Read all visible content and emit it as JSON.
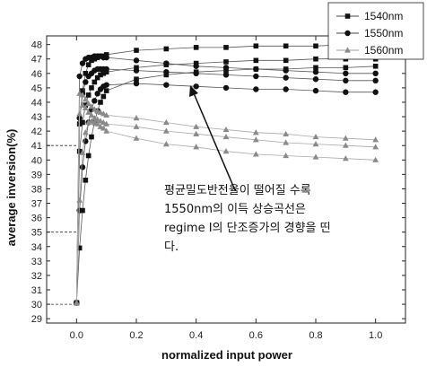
{
  "chart_data": {
    "type": "line",
    "xlabel": "normalized input power",
    "ylabel": "average inversion(%)",
    "xlim": [
      -0.1,
      1.1
    ],
    "ylim": [
      28.7,
      48.6
    ],
    "x_ticks": [
      "0.0",
      "0.2",
      "0.4",
      "0.6",
      "0.8",
      "1.0"
    ],
    "y_ticks": [
      "29",
      "30",
      "31",
      "32",
      "33",
      "34",
      "35",
      "36",
      "37",
      "38",
      "39",
      "40",
      "41",
      "42",
      "43",
      "44",
      "45",
      "46",
      "47",
      "48"
    ],
    "grid": false,
    "legend_position": "top-right",
    "series": [
      {
        "name": "1540nm",
        "marker": "square",
        "color": "#111111",
        "lines": [
          {
            "x": [
              0,
              0.01,
              0.02,
              0.03,
              0.04,
              0.05,
              0.06,
              0.07,
              0.08,
              0.09,
              0.1,
              0.2,
              0.3,
              0.4,
              0.5,
              0.6,
              0.7,
              0.8,
              0.9,
              1.0
            ],
            "y": [
              30.1,
              42.5,
              44.8,
              46.0,
              46.6,
              46.9,
              47.0,
              47.1,
              47.2,
              47.2,
              47.3,
              47.6,
              47.7,
              47.8,
              47.8,
              47.9,
              47.9,
              47.9,
              48.0,
              48.0
            ]
          },
          {
            "x": [
              0,
              0.01,
              0.02,
              0.03,
              0.04,
              0.05,
              0.06,
              0.07,
              0.08,
              0.09,
              0.1,
              0.2,
              0.3,
              0.4,
              0.5,
              0.6,
              0.7,
              0.8,
              0.9,
              1.0
            ],
            "y": [
              30.1,
              40.6,
              42.6,
              43.8,
              44.5,
              45.0,
              45.4,
              45.7,
              45.9,
              46.0,
              46.1,
              46.4,
              46.6,
              46.7,
              46.8,
              46.9,
              46.9,
              47.0,
              47.0,
              47.0
            ]
          },
          {
            "x": [
              0,
              0.01,
              0.02,
              0.03,
              0.04,
              0.05,
              0.06,
              0.07,
              0.08,
              0.09,
              0.1,
              0.2,
              0.3,
              0.4,
              0.5,
              0.6,
              0.7,
              0.8,
              0.9,
              1.0
            ],
            "y": [
              30.1,
              33.9,
              36.5,
              38.6,
              40.3,
              41.6,
              42.6,
              43.4,
              44.0,
              44.4,
              44.8,
              45.6,
              45.9,
              46.1,
              46.2,
              46.3,
              46.3,
              46.4,
              46.4,
              46.5
            ]
          }
        ]
      },
      {
        "name": "1550nm",
        "marker": "circle",
        "color": "#111111",
        "lines": [
          {
            "x": [
              0,
              0.01,
              0.02,
              0.03,
              0.04,
              0.05,
              0.06,
              0.07,
              0.08,
              0.09,
              0.1,
              0.2,
              0.3,
              0.4,
              0.5,
              0.6,
              0.7,
              0.8,
              0.9,
              1.0
            ],
            "y": [
              30.1,
              45.8,
              46.7,
              47.0,
              47.1,
              47.1,
              47.2,
              47.2,
              47.2,
              47.1,
              47.1,
              46.9,
              46.7,
              46.5,
              46.4,
              46.3,
              46.2,
              46.1,
              46.0,
              46.0
            ]
          },
          {
            "x": [
              0,
              0.01,
              0.02,
              0.03,
              0.04,
              0.05,
              0.06,
              0.07,
              0.08,
              0.09,
              0.1,
              0.2,
              0.3,
              0.4,
              0.5,
              0.6,
              0.7,
              0.8,
              0.9,
              1.0
            ],
            "y": [
              30.1,
              42.9,
              44.6,
              45.4,
              45.8,
              46.0,
              46.2,
              46.3,
              46.3,
              46.3,
              46.3,
              46.2,
              46.1,
              46.0,
              45.9,
              45.8,
              45.7,
              45.6,
              45.5,
              45.5
            ]
          },
          {
            "x": [
              0,
              0.01,
              0.02,
              0.03,
              0.04,
              0.05,
              0.06,
              0.07,
              0.08,
              0.09,
              0.1,
              0.2,
              0.3,
              0.4,
              0.5,
              0.6,
              0.7,
              0.8,
              0.9,
              1.0
            ],
            "y": [
              30.1,
              36.5,
              39.5,
              41.3,
              42.6,
              43.5,
              44.1,
              44.6,
              44.9,
              45.1,
              45.2,
              45.3,
              45.2,
              45.1,
              45.0,
              44.9,
              44.9,
              44.8,
              44.7,
              44.7
            ]
          }
        ]
      },
      {
        "name": "1560nm",
        "marker": "triangle",
        "color": "#8a8a8a",
        "lines": [
          {
            "x": [
              0,
              0.01,
              0.02,
              0.03,
              0.04,
              0.05,
              0.06,
              0.07,
              0.08,
              0.09,
              0.1,
              0.2,
              0.3,
              0.4,
              0.5,
              0.6,
              0.7,
              0.8,
              0.9,
              1.0
            ],
            "y": [
              30.1,
              44.6,
              44.5,
              44.2,
              43.9,
              43.7,
              43.5,
              43.4,
              43.3,
              43.2,
              43.1,
              42.9,
              42.6,
              42.3,
              42.1,
              41.9,
              41.8,
              41.6,
              41.5,
              41.4
            ]
          },
          {
            "x": [
              0,
              0.01,
              0.02,
              0.03,
              0.04,
              0.05,
              0.06,
              0.07,
              0.08,
              0.09,
              0.1,
              0.2,
              0.3,
              0.4,
              0.5,
              0.6,
              0.7,
              0.8,
              0.9,
              1.0
            ],
            "y": [
              30.1,
              43.2,
              43.8,
              43.6,
              43.3,
              43.1,
              42.9,
              42.8,
              42.7,
              42.6,
              42.5,
              42.3,
              42.0,
              41.8,
              41.6,
              41.4,
              41.2,
              41.1,
              41.0,
              40.9
            ]
          },
          {
            "x": [
              0,
              0.01,
              0.02,
              0.03,
              0.04,
              0.05,
              0.06,
              0.07,
              0.08,
              0.09,
              0.1,
              0.2,
              0.3,
              0.4,
              0.5,
              0.6,
              0.7,
              0.8,
              0.9,
              1.0
            ],
            "y": [
              30.1,
              37.2,
              40.5,
              41.9,
              42.6,
              42.7,
              42.6,
              42.5,
              42.3,
              42.2,
              42.0,
              41.5,
              41.1,
              40.9,
              40.6,
              40.4,
              40.3,
              40.2,
              40.1,
              40.0
            ]
          }
        ]
      }
    ],
    "reference_lines_y": [
      41,
      35,
      30
    ],
    "annotation": {
      "lines": [
        "평균밀도반전율이 떨어질 수록",
        "1550nm의 이득 상승곡선은",
        "regime I의 단조증가의 경향을 띤",
        "다."
      ],
      "arrow_to": {
        "x": 0.4,
        "y": 45.0
      }
    }
  }
}
